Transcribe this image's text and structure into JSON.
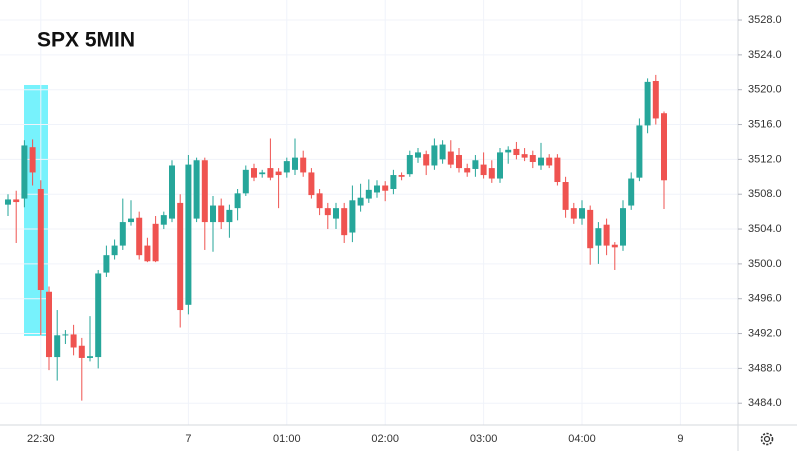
{
  "chart_data": {
    "type": "candlestick",
    "title": "SPX 5MIN",
    "categories": [
      null,
      null,
      null,
      null,
      "22:30",
      null,
      null,
      null,
      null,
      null,
      null,
      null,
      null,
      null,
      null,
      null,
      null,
      null,
      null,
      null,
      null,
      null,
      "7",
      null,
      null,
      null,
      null,
      null,
      null,
      null,
      null,
      null,
      null,
      null,
      "01:00",
      null,
      null,
      null,
      null,
      null,
      null,
      null,
      null,
      null,
      null,
      null,
      "02:00",
      null,
      null,
      null,
      null,
      null,
      null,
      null,
      null,
      null,
      null,
      null,
      "03:00",
      null,
      null,
      null,
      null,
      null,
      null,
      null,
      null,
      null,
      null,
      null,
      "04:00",
      null,
      null,
      null,
      null,
      null,
      null,
      null,
      null,
      null,
      null,
      null,
      "9"
    ],
    "open": [
      3506.8,
      3507.4,
      3507.5,
      3513.4,
      3508.6,
      3496.8,
      3489.3,
      3491.8,
      3491.9,
      3490.6,
      3489.2,
      3489.3,
      3499,
      3501,
      3502.1,
      3504.8,
      3505.3,
      3502.1,
      3504.6,
      3504.5,
      3505.2,
      3507,
      3495.3,
      3505.2,
      3511.9,
      3504.8,
      3506.7,
      3504.8,
      3506.4,
      3508.1,
      3511,
      3510.3,
      3511,
      3510.6,
      3510.5,
      3510.8,
      3512.2,
      3510.5,
      3508.1,
      3506.4,
      3505.2,
      3506.4,
      3503.6,
      3506.7,
      3507.5,
      3508.2,
      3509,
      3508.6,
      3510.2,
      3510.3,
      3512.2,
      3512.6,
      3511.3,
      3512,
      3512.9,
      3512.5,
      3511,
      3510.9,
      3511.4,
      3511,
      3509.8,
      3512.8,
      3513.2,
      3512.6,
      3512.5,
      3511.3,
      3512.2,
      3512.2,
      3509.4,
      3506.4,
      3505.2,
      3506.2,
      3502.1,
      3504.5,
      3502.2,
      3502.1,
      3506.7,
      3509.9,
      3515.9,
      3521,
      3517.3,
      null,
      null
    ],
    "high": [
      3508,
      3508.4,
      3514.2,
      3514.3,
      3509.6,
      3497.4,
      3494.7,
      3492.4,
      3493,
      3491.5,
      3494,
      3499.3,
      3502.1,
      3502.8,
      3507.5,
      3507.3,
      3506,
      3503,
      3505.5,
      3506,
      3511.9,
      3508,
      3512.5,
      3512.2,
      3512.2,
      3507.8,
      3507.5,
      3506.8,
      3508.6,
      3511.3,
      3511.5,
      3510.8,
      3514.4,
      3511,
      3512.2,
      3514.4,
      3513,
      3511,
      3508.6,
      3507,
      3507,
      3507,
      3509,
      3509.2,
      3509.7,
      3509.6,
      3509.5,
      3510.8,
      3510.5,
      3513,
      3513.3,
      3513,
      3514.4,
      3514.2,
      3514.2,
      3513.3,
      3511.5,
      3512.5,
      3512.8,
      3511.9,
      3513.3,
      3513.5,
      3514,
      3513.3,
      3513,
      3513.9,
      3512.6,
      3512.6,
      3510,
      3507,
      3507.3,
      3506.7,
      3504.8,
      3505.2,
      3502.5,
      3507.3,
      3510.5,
      3516.7,
      3521.3,
      3521.7,
      3517.5,
      null,
      null
    ],
    "low": [
      3505.5,
      3502.4,
      3506.5,
      3509,
      3491.8,
      3487.8,
      3486.6,
      3490.8,
      3489.5,
      3484.3,
      3488.8,
      3488,
      3498.5,
      3500.5,
      3501.6,
      3504.4,
      3500.5,
      3500.2,
      3500.2,
      3504,
      3504.8,
      3492.7,
      3494.2,
      3504.8,
      3501.6,
      3501.4,
      3504,
      3503,
      3505,
      3507.8,
      3509.5,
      3509.9,
      3509.6,
      3506.4,
      3509.9,
      3510.2,
      3510,
      3507.5,
      3505.6,
      3504,
      3504,
      3502.4,
      3502.5,
      3506,
      3507,
      3507.6,
      3507.2,
      3508,
      3509.6,
      3510,
      3511.6,
      3510.2,
      3510.8,
      3511.5,
      3511,
      3510.5,
      3510,
      3510,
      3509.8,
      3509.3,
      3509.3,
      3511.5,
      3512,
      3511.8,
      3511,
      3510.8,
      3511,
      3509,
      3505.3,
      3504.6,
      3504.5,
      3499.9,
      3500,
      3501,
      3499.3,
      3501.5,
      3506.2,
      3509.5,
      3515,
      3516,
      3506.3,
      null,
      null
    ],
    "close": [
      3507.4,
      3507.1,
      3513.6,
      3510.5,
      3497,
      3489.3,
      3491.8,
      3491.9,
      3490.4,
      3489.2,
      3489.4,
      3498.9,
      3501,
      3502.1,
      3504.8,
      3505.2,
      3501,
      3500.3,
      3500.3,
      3505.6,
      3511.3,
      3494.7,
      3511.4,
      3511.9,
      3504.8,
      3506.7,
      3504.8,
      3506.2,
      3508.1,
      3510.8,
      3509.9,
      3510.5,
      3509.9,
      3510.2,
      3511.8,
      3512.2,
      3510.5,
      3507.9,
      3506.4,
      3505.6,
      3506.4,
      3503.3,
      3507.3,
      3507.6,
      3508.5,
      3509,
      3508.4,
      3510.2,
      3510,
      3512.5,
      3512.8,
      3511.3,
      3513.6,
      3513.7,
      3511.4,
      3511,
      3510.5,
      3511.9,
      3510.2,
      3509.8,
      3512.8,
      3513.1,
      3512.5,
      3512.2,
      3511.7,
      3512.2,
      3511.3,
      3509.4,
      3506.2,
      3505.2,
      3506.4,
      3501.8,
      3504.1,
      3502.1,
      3501.9,
      3506.4,
      3509.8,
      3515.9,
      3520.9,
      3516.7,
      3509.6,
      null,
      null
    ],
    "up_color": "#26a69a",
    "down_color": "#ef5350",
    "ylim": [
      3481.5,
      3530.3
    ],
    "yticks": [
      {
        "value": 3484,
        "label": "3484.0"
      },
      {
        "value": 3488,
        "label": "3488.0"
      },
      {
        "value": 3492,
        "label": "3492.0"
      },
      {
        "value": 3496,
        "label": "3496.0"
      },
      {
        "value": 3500,
        "label": "3500.0"
      },
      {
        "value": 3504,
        "label": "3504.0"
      },
      {
        "value": 3508,
        "label": "3508.0"
      },
      {
        "value": 3512,
        "label": "3512.0"
      },
      {
        "value": 3516,
        "label": "3516.0"
      },
      {
        "value": 3520,
        "label": "3520.0"
      },
      {
        "value": 3524,
        "label": "3524.0"
      },
      {
        "value": 3528,
        "label": "3528.0"
      }
    ],
    "grid": true
  }
}
